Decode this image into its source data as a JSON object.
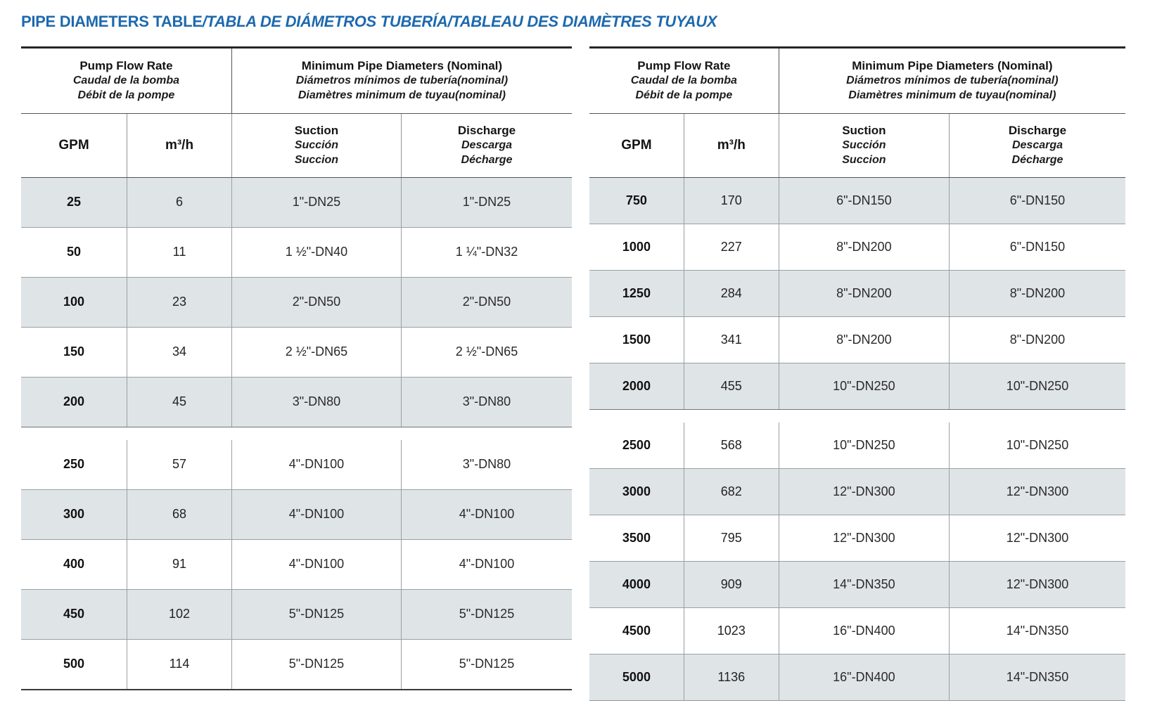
{
  "page_title": {
    "main": "PIPE DIAMETERS TABLE",
    "rest": "/TABLA DE DIÁMETROS TUBERÍA/TABLEAU DES DIAMÈTRES TUYAUX"
  },
  "colors": {
    "title_blue": "#1d69ae",
    "shaded_row": "#dfe4e7",
    "grid_line": "#98a0a5",
    "dark_border": "#262626"
  },
  "table_header": {
    "group1": {
      "en": "Pump Flow Rate",
      "es": "Caudal de la bomba",
      "fr": "Débit de la pompe"
    },
    "group2": {
      "en": "Minimum Pipe Diameters (Nominal)",
      "es": "Diámetros mínimos de tubería(nominal)",
      "fr": "Diamètres minimum de tuyau(nominal)"
    },
    "cols": {
      "gpm": "GPM",
      "m3h": "m³/h",
      "suction": {
        "en": "Suction",
        "es": "Succión",
        "fr": "Succion"
      },
      "discharge": {
        "en": "Discharge",
        "es": "Descarga",
        "fr": "Décharge"
      }
    }
  },
  "tables": [
    {
      "name": "left",
      "sections": [
        {
          "rows": [
            [
              "25",
              "6",
              "1\"-DN25",
              "1\"-DN25"
            ],
            [
              "50",
              "11",
              "1 ½\"-DN40",
              "1 ¼\"-DN32"
            ],
            [
              "100",
              "23",
              "2\"-DN50",
              "2\"-DN50"
            ],
            [
              "150",
              "34",
              "2 ½\"-DN65",
              "2 ½\"-DN65"
            ],
            [
              "200",
              "45",
              "3\"-DN80",
              "3\"-DN80"
            ]
          ]
        },
        {
          "rows": [
            [
              "250",
              "57",
              "4\"-DN100",
              "3\"-DN80"
            ],
            [
              "300",
              "68",
              "4\"-DN100",
              "4\"-DN100"
            ],
            [
              "400",
              "91",
              "4\"-DN100",
              "4\"-DN100"
            ],
            [
              "450",
              "102",
              "5\"-DN125",
              "5\"-DN125"
            ],
            [
              "500",
              "114",
              "5\"-DN125",
              "5\"-DN125"
            ]
          ]
        }
      ]
    },
    {
      "name": "right",
      "sections": [
        {
          "rows": [
            [
              "750",
              "170",
              "6\"-DN150",
              "6\"-DN150"
            ],
            [
              "1000",
              "227",
              "8\"-DN200",
              "6\"-DN150"
            ],
            [
              "1250",
              "284",
              "8\"-DN200",
              "8\"-DN200"
            ],
            [
              "1500",
              "341",
              "8\"-DN200",
              "8\"-DN200"
            ],
            [
              "2000",
              "455",
              "10\"-DN250",
              "10\"-DN250"
            ]
          ]
        },
        {
          "rows": [
            [
              "2500",
              "568",
              "10\"-DN250",
              "10\"-DN250"
            ],
            [
              "3000",
              "682",
              "12\"-DN300",
              "12\"-DN300"
            ],
            [
              "3500",
              "795",
              "12\"-DN300",
              "12\"-DN300"
            ],
            [
              "4000",
              "909",
              "14\"-DN350",
              "12\"-DN300"
            ],
            [
              "4500",
              "1023",
              "16\"-DN400",
              "14\"-DN350"
            ],
            [
              "5000",
              "1136",
              "16\"-DN400",
              "14\"-DN350"
            ]
          ]
        }
      ]
    }
  ]
}
